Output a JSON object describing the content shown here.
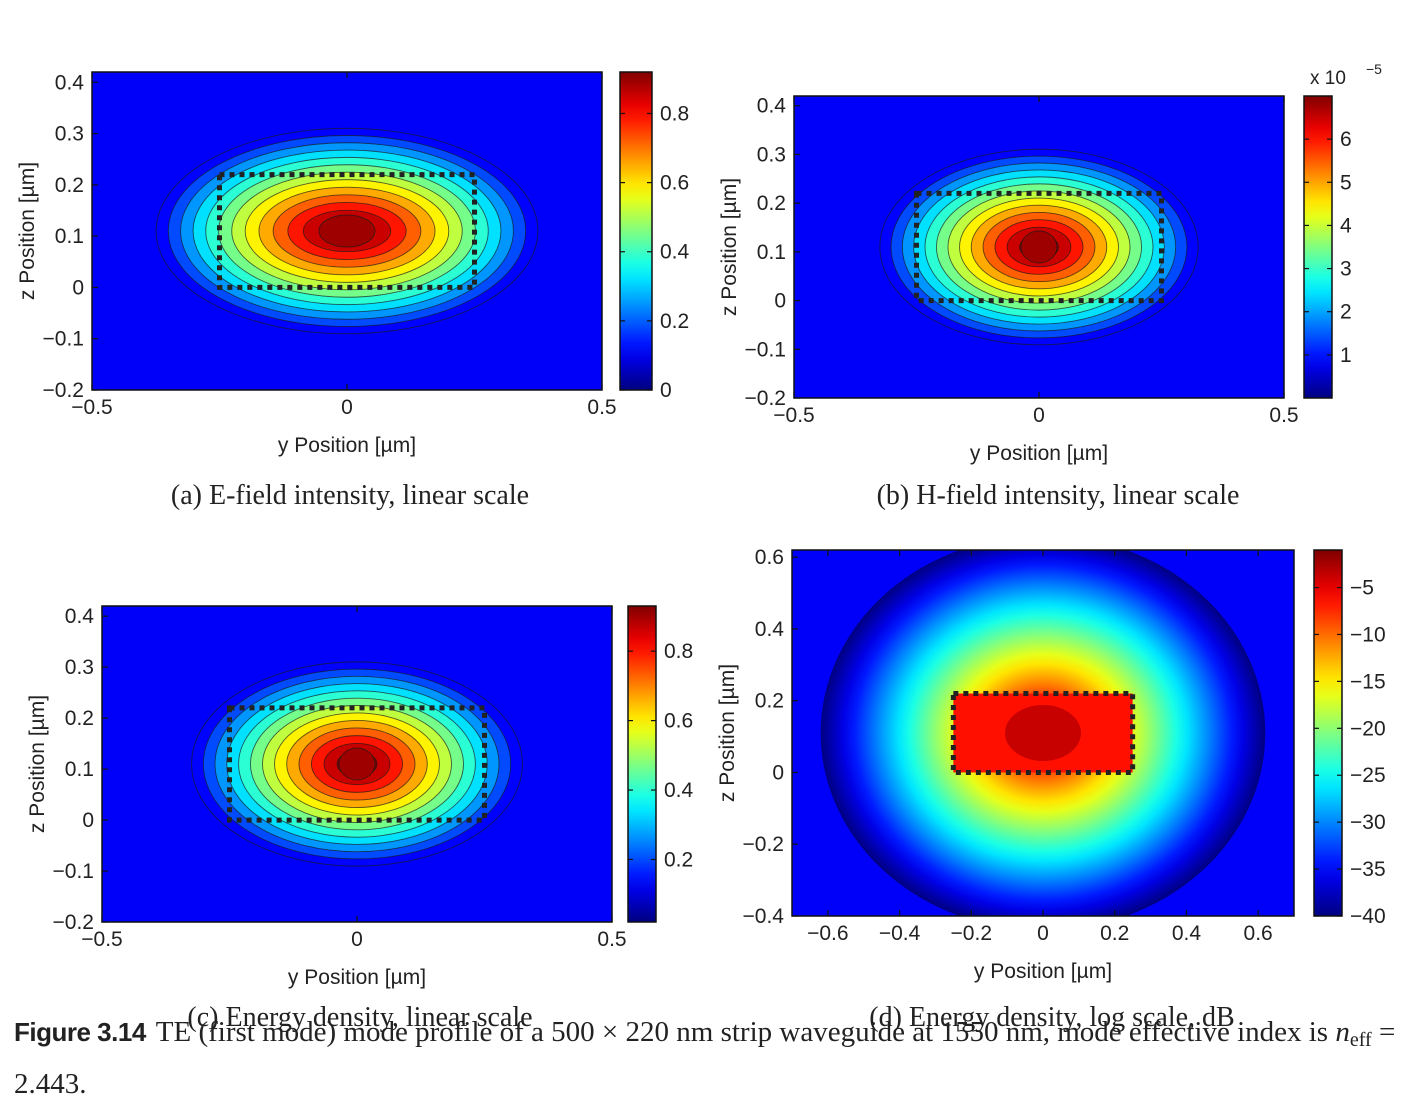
{
  "figure": {
    "label": "Figure 3.14",
    "text_before": "TE (first mode) mode profile of a 500 × 220 nm strip waveguide at 1550 nm, mode effective index is ",
    "n_symbol": "n",
    "n_subscript": "eff",
    "text_after": " = 2.443."
  },
  "chart_data": [
    {
      "id": "a",
      "type": "heatmap",
      "subtitle": "(a) E-field intensity, linear scale",
      "xlabel": "y Position [µm]",
      "ylabel": "z Position [µm]",
      "xlim": [
        -0.5,
        0.5
      ],
      "ylim": [
        -0.2,
        0.42
      ],
      "xticks": [
        -0.5,
        0,
        0.5
      ],
      "xtick_labels": [
        "−0.5",
        "0",
        "0.5"
      ],
      "yticks": [
        -0.2,
        -0.1,
        0,
        0.1,
        0.2,
        0.3,
        0.4
      ],
      "ytick_labels": [
        "−0.2",
        "−0.1",
        "0",
        "0.1",
        "0.2",
        "0.3",
        "0.4"
      ],
      "colorbar": {
        "min": 0,
        "max": 0.92,
        "ticks": [
          0,
          0.2,
          0.4,
          0.6,
          0.8
        ],
        "tick_labels": [
          "0",
          "0.2",
          "0.4",
          "0.6",
          "0.8"
        ],
        "multiplier": ""
      },
      "peak_value": 0.92,
      "peak_center": [
        0,
        0.11
      ],
      "waveguide_core": {
        "y": [
          -0.25,
          0.25
        ],
        "z": [
          0,
          0.22
        ]
      },
      "contours": true
    },
    {
      "id": "b",
      "type": "heatmap",
      "subtitle": "(b) H-field intensity, linear scale",
      "xlabel": "y Position [µm]",
      "ylabel": "z Position [µm]",
      "xlim": [
        -0.5,
        0.5
      ],
      "ylim": [
        -0.2,
        0.42
      ],
      "xticks": [
        -0.5,
        0,
        0.5
      ],
      "xtick_labels": [
        "−0.5",
        "0",
        "0.5"
      ],
      "yticks": [
        -0.2,
        -0.1,
        0,
        0.1,
        0.2,
        0.3,
        0.4
      ],
      "ytick_labels": [
        "−0.2",
        "−0.1",
        "0",
        "0.1",
        "0.2",
        "0.3",
        "0.4"
      ],
      "colorbar": {
        "min": 0,
        "max": 7,
        "ticks": [
          1,
          2,
          3,
          4,
          5,
          6
        ],
        "tick_labels": [
          "1",
          "2",
          "3",
          "4",
          "5",
          "6"
        ],
        "multiplier": "x 10",
        "multiplier_exp": "−5"
      },
      "peak_value": 7,
      "peak_center": [
        0,
        0.11
      ],
      "waveguide_core": {
        "y": [
          -0.25,
          0.25
        ],
        "z": [
          0,
          0.22
        ]
      },
      "contours": true
    },
    {
      "id": "c",
      "type": "heatmap",
      "subtitle": "(c) Energy density, linear scale",
      "xlabel": "y Position [µm]",
      "ylabel": "z Position [µm]",
      "xlim": [
        -0.5,
        0.5
      ],
      "ylim": [
        -0.2,
        0.42
      ],
      "xticks": [
        -0.5,
        0,
        0.5
      ],
      "xtick_labels": [
        "−0.5",
        "0",
        "0.5"
      ],
      "yticks": [
        -0.2,
        -0.1,
        0,
        0.1,
        0.2,
        0.3,
        0.4
      ],
      "ytick_labels": [
        "−0.2",
        "−0.1",
        "0",
        "0.1",
        "0.2",
        "0.3",
        "0.4"
      ],
      "colorbar": {
        "min": 0.02,
        "max": 0.93,
        "ticks": [
          0.2,
          0.4,
          0.6,
          0.8
        ],
        "tick_labels": [
          "0.2",
          "0.4",
          "0.6",
          "0.8"
        ],
        "multiplier": ""
      },
      "peak_value": 0.93,
      "peak_center": [
        0,
        0.11
      ],
      "waveguide_core": {
        "y": [
          -0.25,
          0.25
        ],
        "z": [
          0,
          0.22
        ]
      },
      "contours": true
    },
    {
      "id": "d",
      "type": "heatmap",
      "subtitle": "(d) Energy density, log scale, dB",
      "xlabel": "y Position [µm]",
      "ylabel": "z Position [µm]",
      "xlim": [
        -0.7,
        0.7
      ],
      "ylim": [
        -0.4,
        0.62
      ],
      "xticks": [
        -0.6,
        -0.4,
        -0.2,
        0,
        0.2,
        0.4,
        0.6
      ],
      "xtick_labels": [
        "−0.6",
        "−0.4",
        "−0.2",
        "0",
        "0.2",
        "0.4",
        "0.6"
      ],
      "yticks": [
        -0.4,
        -0.2,
        0,
        0.2,
        0.4,
        0.6
      ],
      "ytick_labels": [
        "−0.4",
        "−0.2",
        "0",
        "0.2",
        "0.4",
        "0.6"
      ],
      "colorbar": {
        "min": -40,
        "max": -1,
        "ticks": [
          -40,
          -35,
          -30,
          -25,
          -20,
          -15,
          -10,
          -5
        ],
        "tick_labels": [
          "−40",
          "−35",
          "−30",
          "−25",
          "−20",
          "−15",
          "−10",
          "−5"
        ],
        "multiplier": ""
      },
      "peak_value": -1,
      "peak_center": [
        0,
        0.11
      ],
      "waveguide_core": {
        "y": [
          -0.25,
          0.25
        ],
        "z": [
          0,
          0.22
        ]
      },
      "contours": false
    }
  ]
}
